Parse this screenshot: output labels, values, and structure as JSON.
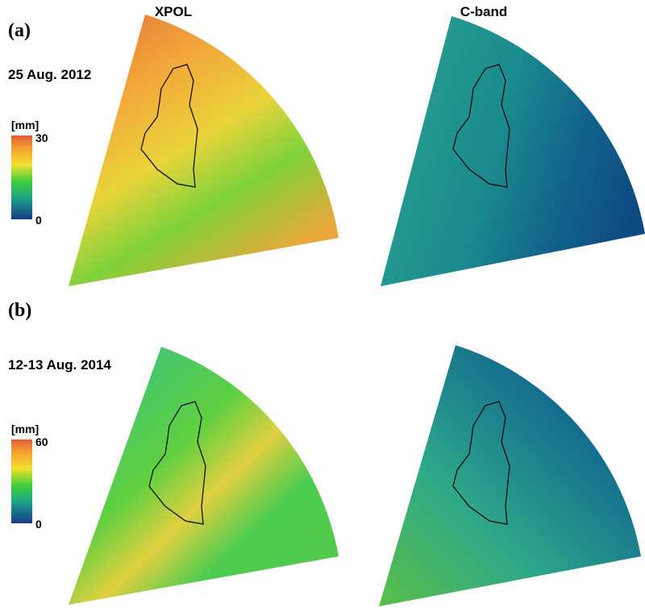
{
  "columns": [
    "XPOL",
    "C-band"
  ],
  "panels": [
    {
      "label": "(a)",
      "date": "25 Aug. 2012",
      "colorbar": {
        "unit": "[mm]",
        "max": 30,
        "min": 0
      }
    },
    {
      "label": "(b)",
      "date": "12-13 Aug. 2014",
      "colorbar": {
        "unit": "[mm]",
        "max": 60,
        "min": 0
      }
    }
  ]
}
